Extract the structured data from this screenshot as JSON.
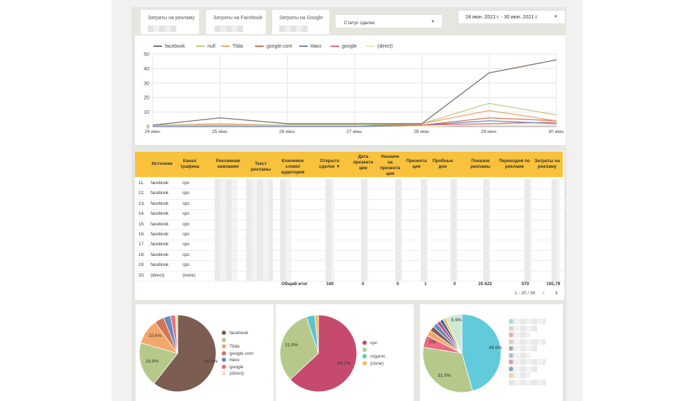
{
  "kpis": [
    {
      "label": "Затраты на рекламу"
    },
    {
      "label": "Затраты на Facebook"
    },
    {
      "label": "Затраты на Google"
    }
  ],
  "status_filter": {
    "label": "Статус сделки"
  },
  "date_range": {
    "label": "24 июн. 2021 г. - 30 июн. 2021 г."
  },
  "chart_data": [
    {
      "type": "line",
      "x": [
        "24 июн.",
        "25 июн.",
        "26 июн.",
        "27 июн.",
        "28 июн.",
        "29 июн.",
        "30 июн."
      ],
      "ylim": [
        0,
        50
      ],
      "yticks": [
        0,
        10,
        20,
        30,
        40,
        50
      ],
      "grid": true,
      "legend": "top-left",
      "series": [
        {
          "name": "facebook",
          "color": "#7b6f66",
          "values": [
            1,
            6,
            2,
            2,
            2,
            37,
            46
          ]
        },
        {
          "name": "null",
          "color": "#c2c890",
          "values": [
            1,
            2,
            1,
            1,
            2,
            16,
            8
          ]
        },
        {
          "name": "Tilda",
          "color": "#f3a86b",
          "values": [
            1,
            1,
            1,
            1,
            2,
            11,
            4
          ]
        },
        {
          "name": "google.com",
          "color": "#d27456",
          "values": [
            1,
            1,
            1,
            1,
            1,
            6,
            4
          ]
        },
        {
          "name": "Квиз",
          "color": "#6a89bd",
          "values": [
            0,
            0,
            0,
            0,
            1,
            4,
            2
          ]
        },
        {
          "name": "google",
          "color": "#ea6b7d",
          "values": [
            0,
            0,
            0,
            0,
            1,
            2,
            3
          ]
        },
        {
          "name": "(direct)",
          "color": "#efe4b0",
          "values": [
            0,
            0,
            0,
            0,
            0,
            1,
            1
          ]
        }
      ]
    },
    {
      "type": "pie",
      "slices": [
        {
          "name": "facebook",
          "value": 60.6,
          "label": "60.6%",
          "color": "#7b5d52"
        },
        {
          "name": "",
          "value": 18.8,
          "label": "18.8%",
          "color": "#b6c98b"
        },
        {
          "name": "Tilda",
          "value": 10.6,
          "label": "10.6%",
          "color": "#f3a86b"
        },
        {
          "name": "google.com",
          "value": 4.0,
          "label": "",
          "color": "#d27456"
        },
        {
          "name": "Квиз",
          "value": 3.0,
          "label": "",
          "color": "#6a89bd"
        },
        {
          "name": "google",
          "value": 2.0,
          "label": "",
          "color": "#ea6b7d"
        },
        {
          "name": "(direct)",
          "value": 1.0,
          "label": "",
          "color": "#efe4b0"
        }
      ],
      "legend": "right"
    },
    {
      "type": "pie",
      "slices": [
        {
          "name": "cpc",
          "value": 63.1,
          "label": "63.1%",
          "color": "#c64a6e"
        },
        {
          "name": "",
          "value": 31.9,
          "label": "31.9%",
          "color": "#b6c98b"
        },
        {
          "name": "organic",
          "value": 3.5,
          "label": "",
          "color": "#5bc3cf"
        },
        {
          "name": "(none)",
          "value": 1.5,
          "label": "",
          "color": "#f3c04f"
        }
      ],
      "legend": "right"
    },
    {
      "type": "pie",
      "slices": [
        {
          "name": "",
          "value": 45.6,
          "label": "45.6%",
          "color": "#62cbdb"
        },
        {
          "name": "",
          "value": 31.9,
          "label": "31.9%",
          "color": "#b6c98b"
        },
        {
          "name": "",
          "value": 5.0,
          "label": "5%",
          "color": "#ea6b7d"
        },
        {
          "name": "",
          "value": 2.5,
          "label": "",
          "color": "#f3a86b"
        },
        {
          "name": "",
          "value": 2.0,
          "label": "",
          "color": "#7b5d52"
        },
        {
          "name": "",
          "value": 2.0,
          "label": "",
          "color": "#6a89bd"
        },
        {
          "name": "",
          "value": 1.5,
          "label": "",
          "color": "#c64a6e"
        },
        {
          "name": "",
          "value": 1.3,
          "label": "",
          "color": "#1f5fa0"
        },
        {
          "name": "",
          "value": 1.3,
          "label": "",
          "color": "#f3c04f"
        },
        {
          "name": "",
          "value": 6.9,
          "label": "6.9%",
          "color": "#cfe8d5"
        }
      ],
      "legend": "right"
    }
  ],
  "table": {
    "headers": [
      "Источник",
      "Канал трафика",
      "Рекламная кампания",
      "Текст рекламы",
      "Ключевое слово/ аудитория",
      "Открыто сделок ▼",
      "Дата презента ции",
      "Назначе на презента ция",
      "Презента ция",
      "Пробные дни",
      "Показов рекламы",
      "Переходов по рекламе",
      "Затраты на рекламу"
    ],
    "rows": [
      {
        "num": "11.",
        "source": "facebook",
        "channel": "cpc"
      },
      {
        "num": "12.",
        "source": "facebook",
        "channel": "cpc"
      },
      {
        "num": "13.",
        "source": "facebook",
        "channel": "cpc"
      },
      {
        "num": "14.",
        "source": "facebook",
        "channel": "cpc"
      },
      {
        "num": "15.",
        "source": "facebook",
        "channel": "cpc"
      },
      {
        "num": "16.",
        "source": "facebook",
        "channel": "cpc"
      },
      {
        "num": "17.",
        "source": "facebook",
        "channel": "cpc"
      },
      {
        "num": "18.",
        "source": "facebook",
        "channel": "cpc"
      },
      {
        "num": "19.",
        "source": "facebook",
        "channel": "cpc"
      },
      {
        "num": "20.",
        "source": "(direct)",
        "channel": "(none)"
      }
    ],
    "totals": {
      "label": "Общий итог",
      "opened": "160",
      "date_pres": "0",
      "assigned": "0",
      "pres": "1",
      "trial": "0",
      "impressions": "25 622",
      "clicks": "570",
      "cost": "192,79"
    },
    "pagination": {
      "text": "1 - 20 / 30",
      "prev": "‹",
      "next": "›"
    }
  }
}
